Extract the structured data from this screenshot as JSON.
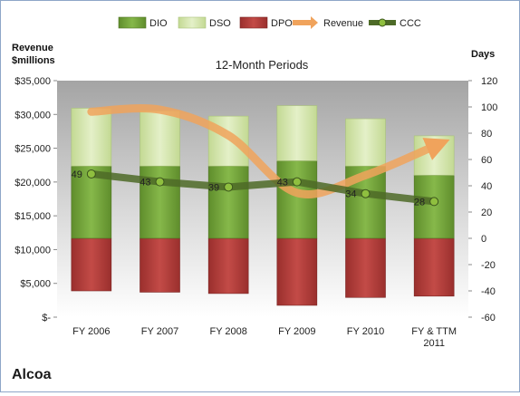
{
  "chart_data": {
    "type": "bar",
    "title": "12-Month Periods",
    "company": "Alcoa",
    "left_axis": {
      "label_line1": "Revenue",
      "label_line2": "$millions",
      "ylim": [
        0,
        35000
      ],
      "ticks": [
        "$-",
        "$5,000",
        "$10,000",
        "$15,000",
        "$20,000",
        "$25,000",
        "$30,000",
        "$35,000"
      ]
    },
    "right_axis": {
      "label": "Days",
      "ylim": [
        -60,
        120
      ],
      "ticks": [
        "-60",
        "-40",
        "-20",
        "0",
        "20",
        "40",
        "60",
        "80",
        "100",
        "120"
      ]
    },
    "categories": [
      "FY 2006",
      "FY 2007",
      "FY 2008",
      "FY 2009",
      "FY 2010",
      "FY & TTM 2011"
    ],
    "category_lines": [
      [
        "FY 2006"
      ],
      [
        "FY 2007"
      ],
      [
        "FY 2008"
      ],
      [
        "FY 2009"
      ],
      [
        "FY 2010"
      ],
      [
        "FY & TTM",
        "2011"
      ]
    ],
    "series": [
      {
        "name": "DIO",
        "axis": "right",
        "values": [
          55,
          55,
          55,
          59,
          55,
          48
        ]
      },
      {
        "name": "DSO",
        "axis": "right",
        "values": [
          44,
          42,
          38,
          42,
          36,
          30
        ]
      },
      {
        "name": "DPO",
        "axis": "right",
        "values": [
          -40,
          -41,
          -42,
          -51,
          -45,
          -44
        ]
      },
      {
        "name": "Revenue",
        "axis": "left",
        "values": [
          30400,
          30700,
          26900,
          18400,
          21000,
          25300
        ]
      },
      {
        "name": "CCC",
        "axis": "right",
        "values": [
          49,
          43,
          39,
          43,
          34,
          28
        ]
      }
    ],
    "data_labels": [
      "49",
      "43",
      "39",
      "43",
      "34",
      "28"
    ],
    "legend_position": "top",
    "grid": false,
    "colors": {
      "DIO": "#74a83b",
      "DSO": "#d2e5a6",
      "DPO": "#b23b39",
      "Revenue": "#f0a35c",
      "CCC": "#4d6a27"
    }
  }
}
